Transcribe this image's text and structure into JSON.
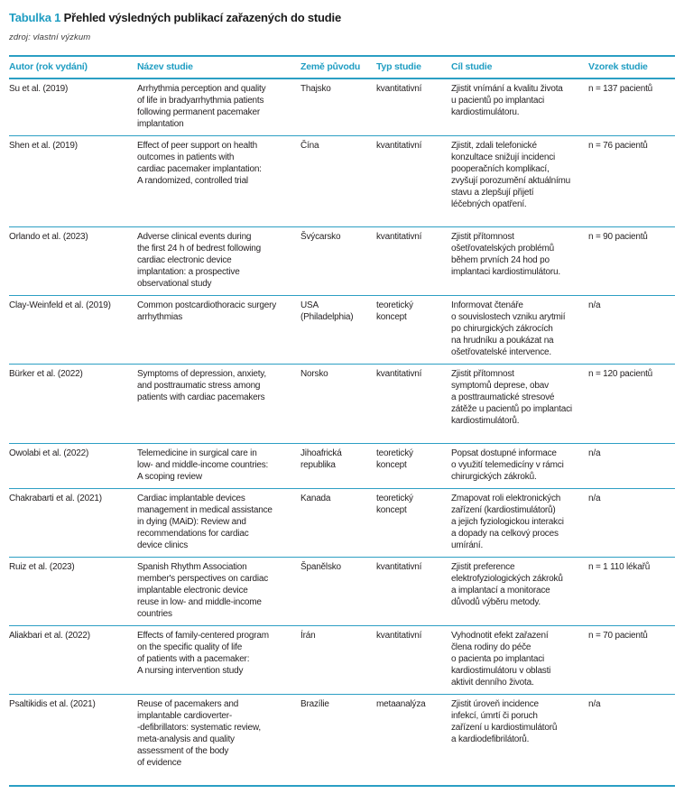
{
  "accent_color": "#1f9dc2",
  "title": {
    "prefix": "Tabulka 1",
    "text": "Přehled výsledných publikací zařazených do studie"
  },
  "source_note": "zdroj: vlastní výzkum",
  "table": {
    "columns": [
      {
        "key": "autor",
        "label": "Autor (rok vydání)"
      },
      {
        "key": "nazev",
        "label": "Název studie"
      },
      {
        "key": "zeme",
        "label": "Země původu"
      },
      {
        "key": "typ",
        "label": "Typ studie"
      },
      {
        "key": "cil",
        "label": "Cíl studie"
      },
      {
        "key": "vzorek",
        "label": "Vzorek studie"
      }
    ],
    "rows": [
      {
        "tall": false,
        "cells": [
          "Su et al. (2019)",
          "Arrhythmia perception and quality\nof life in bradyarrhythmia patients\nfollowing permanent pacemaker\nimplantation",
          "Thajsko",
          "kvantitativní",
          "Zjistit vnímání a kvalitu života\nu pacientů po implantaci\nkardiostimulátoru.",
          "n = 137 pacientů"
        ]
      },
      {
        "tall": true,
        "cells": [
          "Shen et al. (2019)",
          "Effect of peer support on health\noutcomes in patients with\ncardiac pacemaker implantation:\nA randomized, controlled trial",
          "Čína",
          "kvantitativní",
          "Zjistit, zdali telefonické\nkonzultace snižují incidenci\npooperačních komplikací,\nzvyšují porozumění aktuálnímu\nstavu a zlepšují přijetí\nléčebných opatření.",
          "n = 76 pacientů"
        ]
      },
      {
        "tall": false,
        "cells": [
          "Orlando et al. (2023)",
          "Adverse clinical events during\nthe first 24 h of bedrest following\ncardiac electronic device\nimplantation: a prospective\nobservational study",
          "Švýcarsko",
          "kvantitativní",
          "Zjistit přítomnost\nošetřovatelských problémů\nběhem prvních 24 hod po\nimplantaci kardiostimulátoru.",
          "n = 90 pacientů"
        ]
      },
      {
        "tall": false,
        "cells": [
          "Clay-Weinfeld et al. (2019)",
          "Common postcardiothoracic surgery\narrhythmias",
          "USA\n(Philadelphia)",
          "teoretický koncept",
          "Informovat čtenáře\no souvislostech vzniku arytmií\npo chirurgických zákrocích\nna hrudníku a poukázat na\nošetřovatelské intervence.",
          "n/a"
        ]
      },
      {
        "tall": true,
        "cells": [
          "Bürker et al. (2022)",
          "Symptoms of depression, anxiety,\nand posttraumatic stress among\npatients with cardiac pacemakers",
          "Norsko",
          "kvantitativní",
          "Zjistit přítomnost\nsymptomů deprese, obav\na posttraumatické stresové\nzátěže u pacientů po implantaci\nkardiostimulátorů.",
          "n = 120 pacientů"
        ]
      },
      {
        "tall": false,
        "cells": [
          "Owolabi et al. (2022)",
          "Telemedicine in surgical care in\nlow- and middle-income countries:\nA scoping review",
          "Jihoafrická\nrepublika",
          "teoretický koncept",
          "Popsat dostupné informace\no využití telemedicíny v rámci\nchirurgických zákroků.",
          "n/a"
        ]
      },
      {
        "tall": false,
        "cells": [
          "Chakrabarti et al. (2021)",
          "Cardiac implantable devices\nmanagement in medical assistance\nin dying (MAiD): Review and\nrecommendations for cardiac\ndevice clinics",
          "Kanada",
          "teoretický koncept",
          "Zmapovat roli elektronických\nzařízení (kardiostimulátorů)\na jejich fyziologickou interakci\na dopady na celkový proces\numírání.",
          "n/a"
        ]
      },
      {
        "tall": false,
        "cells": [
          "Ruiz et al. (2023)",
          "Spanish Rhythm Association\nmember's perspectives on cardiac\nimplantable electronic device\nreuse in low- and middle-income\ncountries",
          "Španělsko",
          "kvantitativní",
          "Zjistit preference\nelektrofyziologických zákroků\na implantací a monitorace\ndůvodů výběru metody.",
          "n = 1 110 lékařů"
        ]
      },
      {
        "tall": false,
        "cells": [
          "Aliakbari et al. (2022)",
          "Effects of family-centered program\non the specific quality of life\nof patients with a pacemaker:\nA nursing intervention study",
          "Írán",
          "kvantitativní",
          "Vyhodnotit efekt zařazení\nčlena rodiny do péče\no pacienta po implantaci\nkardiostimulátoru v oblasti\naktivit denního života.",
          "n = 70 pacientů"
        ]
      },
      {
        "tall": true,
        "cells": [
          "Psaltikidis et al. (2021)",
          "Reuse of pacemakers and\nimplantable cardioverter-\n-defibrillators: systematic review,\nmeta-analysis and quality\nassessment of the body\nof evidence",
          "Brazílie",
          "metaanalýza",
          "Zjistit úroveň incidence\ninfekcí, úmrtí či poruch\nzařízení u kardiostimulátorů\na kardiodefibrilátorů.",
          "n/a"
        ]
      }
    ]
  }
}
